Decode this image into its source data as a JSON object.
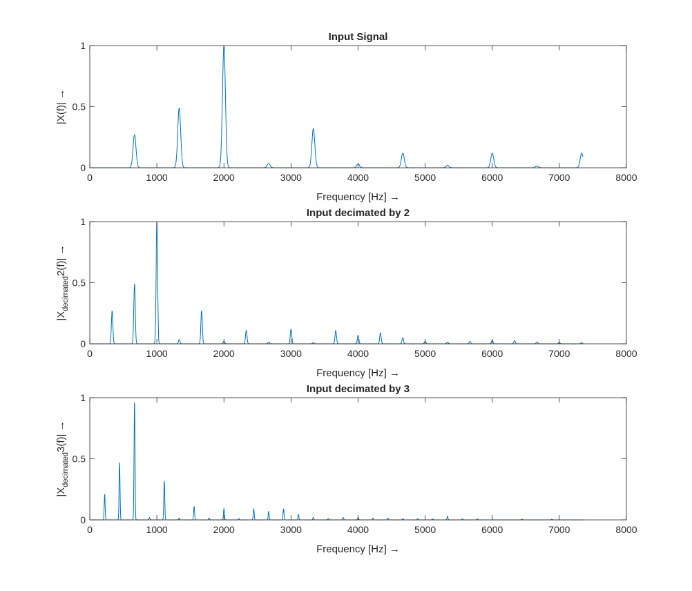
{
  "chart_data": [
    {
      "type": "line",
      "title": "Input Signal",
      "xlabel": "Frequency [Hz] →",
      "ylabel": "|X(f)| →",
      "ylabel_sub": "",
      "ylabel_tail": "",
      "xlim": [
        0,
        8000
      ],
      "ylim": [
        0,
        1
      ],
      "xticks": [
        0,
        1000,
        2000,
        3000,
        4000,
        5000,
        6000,
        7000,
        8000
      ],
      "yticks": [
        0,
        0.5,
        1
      ],
      "ytick_labels": [
        "0",
        "0.5",
        "1"
      ],
      "color": "#0072BD",
      "x_end": 7350,
      "peak_width_hz": 22,
      "peaks": [
        [
          667,
          0.27
        ],
        [
          1333,
          0.49
        ],
        [
          2000,
          1.0
        ],
        [
          2667,
          0.035
        ],
        [
          3333,
          0.32
        ],
        [
          4000,
          0.03
        ],
        [
          4667,
          0.12
        ],
        [
          5333,
          0.02
        ],
        [
          6000,
          0.12
        ],
        [
          6667,
          0.015
        ],
        [
          7333,
          0.12
        ]
      ]
    },
    {
      "type": "line",
      "title": "Input decimated by 2",
      "xlabel": "Frequency [Hz] →",
      "ylabel": "|X",
      "ylabel_sub": "decimated",
      "ylabel_tail": "2(f)| →",
      "xlim": [
        0,
        8000
      ],
      "ylim": [
        0,
        1
      ],
      "xticks": [
        0,
        1000,
        2000,
        3000,
        4000,
        5000,
        6000,
        7000,
        8000
      ],
      "yticks": [
        0,
        0.5,
        1
      ],
      "ytick_labels": [
        "0",
        "0.5",
        "1"
      ],
      "color": "#0072BD",
      "x_end": 7350,
      "peak_width_hz": 11,
      "peaks": [
        [
          333,
          0.27
        ],
        [
          667,
          0.49
        ],
        [
          1000,
          1.0
        ],
        [
          1333,
          0.035
        ],
        [
          1667,
          0.27
        ],
        [
          2000,
          0.02
        ],
        [
          2333,
          0.11
        ],
        [
          2667,
          0.015
        ],
        [
          3000,
          0.12
        ],
        [
          3333,
          0.01
        ],
        [
          3667,
          0.11
        ],
        [
          4000,
          0.07
        ],
        [
          4333,
          0.09
        ],
        [
          4667,
          0.05
        ],
        [
          5000,
          0.02
        ],
        [
          5333,
          0.015
        ],
        [
          5667,
          0.02
        ],
        [
          6000,
          0.03
        ],
        [
          6333,
          0.025
        ],
        [
          6667,
          0.015
        ],
        [
          7000,
          0.01
        ],
        [
          7333,
          0.01
        ]
      ]
    },
    {
      "type": "line",
      "title": "Input decimated by 3",
      "xlabel": "Frequency [Hz] →",
      "ylabel": "|X",
      "ylabel_sub": "decimated",
      "ylabel_tail": "3(f)| →",
      "xlim": [
        0,
        8000
      ],
      "ylim": [
        0,
        1
      ],
      "xticks": [
        0,
        1000,
        2000,
        3000,
        4000,
        5000,
        6000,
        7000,
        8000
      ],
      "yticks": [
        0,
        0.5,
        1
      ],
      "ytick_labels": [
        "0",
        "0.5",
        "1"
      ],
      "color": "#0072BD",
      "x_end": 7350,
      "peak_width_hz": 7,
      "peaks": [
        [
          222,
          0.21
        ],
        [
          444,
          0.47
        ],
        [
          667,
          0.97
        ],
        [
          889,
          0.02
        ],
        [
          1111,
          0.32
        ],
        [
          1333,
          0.015
        ],
        [
          1556,
          0.11
        ],
        [
          1778,
          0.015
        ],
        [
          2000,
          0.095
        ],
        [
          2222,
          0.01
        ],
        [
          2444,
          0.09
        ],
        [
          2667,
          0.07
        ],
        [
          2889,
          0.09
        ],
        [
          3111,
          0.045
        ],
        [
          3333,
          0.02
        ],
        [
          3556,
          0.01
        ],
        [
          3778,
          0.02
        ],
        [
          4000,
          0.02
        ],
        [
          4222,
          0.015
        ],
        [
          4444,
          0.015
        ],
        [
          4667,
          0.01
        ],
        [
          4889,
          0.01
        ],
        [
          5111,
          0.008
        ],
        [
          5333,
          0.03
        ],
        [
          5556,
          0.008
        ],
        [
          5778,
          0.008
        ],
        [
          6444,
          0.006
        ],
        [
          6889,
          0.006
        ]
      ]
    }
  ]
}
